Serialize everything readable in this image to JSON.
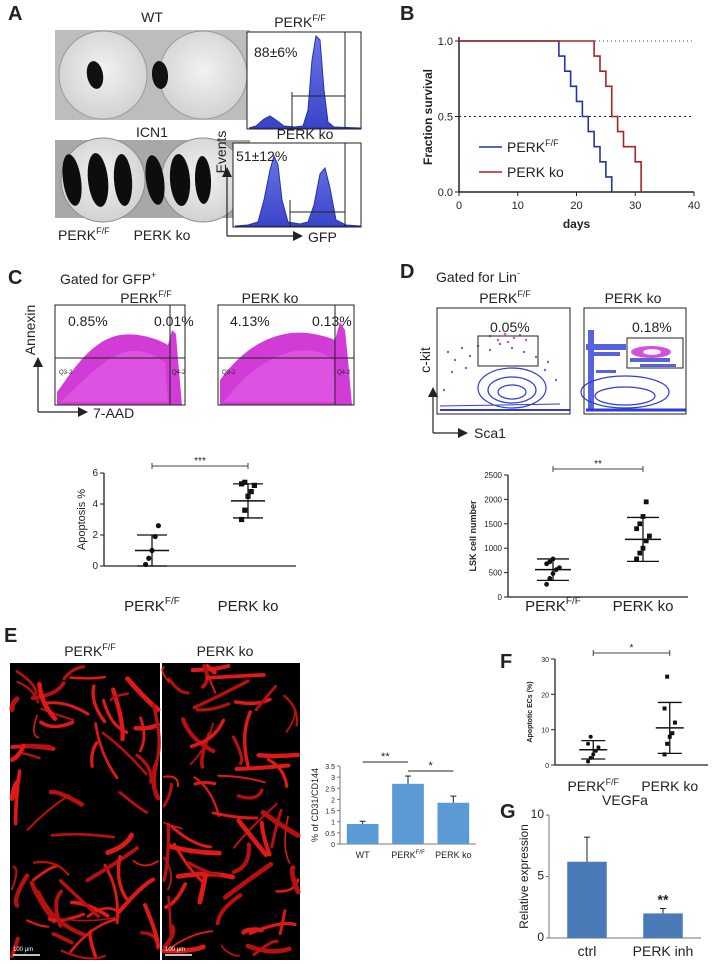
{
  "panel_letters": [
    "A",
    "B",
    "C",
    "D",
    "E",
    "F",
    "G"
  ],
  "panel_a": {
    "photo_wt_label": "WT",
    "photo_icn1_label": "ICN1",
    "genotype_left": "PERK",
    "genotype_sup": "F/F",
    "genotype_right": "PERK ko",
    "flow_top_title": "PERK",
    "flow_top_sup": "F/F",
    "flow_top_value": "88±6%",
    "flow_bottom_title": "PERK ko",
    "flow_bottom_value": "51±12%",
    "y_axis": "Events",
    "x_axis": "GFP"
  },
  "panel_c": {
    "gate_text": "Gated for GFP",
    "gate_sup": "+",
    "plot1_title": "PERK",
    "plot1_sup": "F/F",
    "plot1_q1": "0.85%",
    "plot1_q2": "0.01%",
    "plot2_title": "PERK ko",
    "plot2_q1": "4.13%",
    "plot2_q2": "0.13%",
    "gate_names": [
      "Q3-2",
      "Q4-2",
      "Q3-2",
      "Q4-2"
    ],
    "y_axis": "Annexin",
    "x_axis": "7-AAD",
    "significance": "***"
  },
  "panel_d": {
    "gate_text": "Gated for Lin",
    "gate_sup": "-",
    "plot1_title": "PERK",
    "plot1_sup": "F/F",
    "plot1_value": "0.05%",
    "plot2_title": "PERK ko",
    "plot2_value": "0.18%",
    "y_axis": "c-kit",
    "x_axis": "Sca1",
    "significance": "**"
  },
  "panel_e": {
    "image1_title": "PERK",
    "image1_sup": "F/F",
    "image2_title": "PERK ko",
    "scale_bar_text": "100 μm",
    "significance_1": "**",
    "significance_2": "*"
  },
  "panel_f": {
    "significance": "*"
  },
  "panel_g": {
    "significance": "**"
  },
  "chart_data": [
    {
      "id": "B",
      "type": "line",
      "title": "",
      "xlabel": "days",
      "ylabel": "Fraction survival",
      "xlim": [
        0,
        40
      ],
      "ylim": [
        0,
        1
      ],
      "xticks": [
        "0",
        "10",
        "20",
        "30",
        "40"
      ],
      "yticks": [
        "0.0",
        "0.5",
        "1.0"
      ],
      "reference_line": 0.5,
      "series": [
        {
          "name": "PERK",
          "name_sup": "F/F",
          "color": "#2233aa",
          "x": [
            0,
            16,
            17,
            18,
            19,
            20,
            21,
            22,
            23,
            24,
            25,
            26
          ],
          "y": [
            1.0,
            1.0,
            0.9,
            0.8,
            0.7,
            0.6,
            0.5,
            0.4,
            0.3,
            0.2,
            0.1,
            0.0
          ]
        },
        {
          "name": "PERK ko",
          "name_sup": "",
          "color": "#aa2222",
          "x": [
            0,
            22,
            23,
            24,
            25,
            26,
            27,
            28,
            29,
            30,
            31
          ],
          "y": [
            1.0,
            1.0,
            0.9,
            0.8,
            0.7,
            0.5,
            0.4,
            0.3,
            0.3,
            0.2,
            0.0
          ]
        }
      ]
    },
    {
      "id": "C",
      "type": "scatter",
      "title": "",
      "ylabel": "Apoptosis %",
      "categories": [
        "PERK",
        "PERK ko"
      ],
      "category_sups": [
        "F/F",
        ""
      ],
      "ylim": [
        0,
        6
      ],
      "yticks": [
        "0",
        "2",
        "4",
        "6"
      ],
      "points": [
        [
          0.1,
          0.5,
          1.0,
          1.9,
          2.6
        ],
        [
          3.0,
          3.6,
          4.5,
          4.8,
          5.2,
          5.3,
          5.4
        ]
      ],
      "means": [
        1.0,
        4.2
      ],
      "errors": [
        1.0,
        1.1
      ]
    },
    {
      "id": "D",
      "type": "scatter",
      "title": "",
      "ylabel": "LSK cell number",
      "categories": [
        "PERK",
        "PERK ko"
      ],
      "category_sups": [
        "F/F",
        ""
      ],
      "ylim": [
        0,
        2500
      ],
      "yticks": [
        "0",
        "500",
        "1000",
        "1500",
        "2000",
        "2500"
      ],
      "points": [
        [
          260,
          380,
          480,
          560,
          600,
          680,
          720,
          780
        ],
        [
          780,
          900,
          1000,
          1150,
          1250,
          1400,
          1500,
          1650,
          1950
        ]
      ],
      "means": [
        560,
        1180
      ],
      "errors": [
        220,
        450
      ]
    },
    {
      "id": "E",
      "type": "bar",
      "title": "",
      "ylabel": "% of CD31/CD144",
      "categories": [
        "WT",
        "PERK",
        "PERK ko"
      ],
      "category_sups": [
        "",
        "F/F",
        ""
      ],
      "values": [
        0.9,
        2.7,
        1.85
      ],
      "errors": [
        0.12,
        0.35,
        0.3
      ],
      "ylim": [
        0,
        3.5
      ],
      "yticks": [
        "0",
        "0.5",
        "1",
        "1.5",
        "2",
        "2.5",
        "3",
        "3.5"
      ],
      "bar_color": "#5b9bd5"
    },
    {
      "id": "F",
      "type": "scatter",
      "title": "",
      "ylabel": "Apoptotic ECs (%)",
      "categories": [
        "PERK",
        "PERK ko"
      ],
      "category_sups": [
        "F/F",
        ""
      ],
      "ylim": [
        0,
        30
      ],
      "yticks": [
        "0",
        "10",
        "20",
        "30"
      ],
      "points": [
        [
          1,
          2,
          3,
          4,
          5,
          6,
          8
        ],
        [
          3,
          6,
          8,
          9,
          12,
          16,
          25
        ]
      ],
      "means": [
        4.3,
        10.5
      ],
      "errors": [
        2.6,
        7.2
      ]
    },
    {
      "id": "G",
      "type": "bar",
      "title": "VEGFa",
      "ylabel": "Relative expression",
      "categories": [
        "ctrl",
        "PERK inh"
      ],
      "category_sups": [
        "",
        ""
      ],
      "values": [
        6.2,
        2.0
      ],
      "errors": [
        2.0,
        0.4
      ],
      "ylim": [
        0,
        10
      ],
      "yticks": [
        "0",
        "5",
        "10"
      ],
      "bar_color": "#4a7ab8"
    }
  ]
}
